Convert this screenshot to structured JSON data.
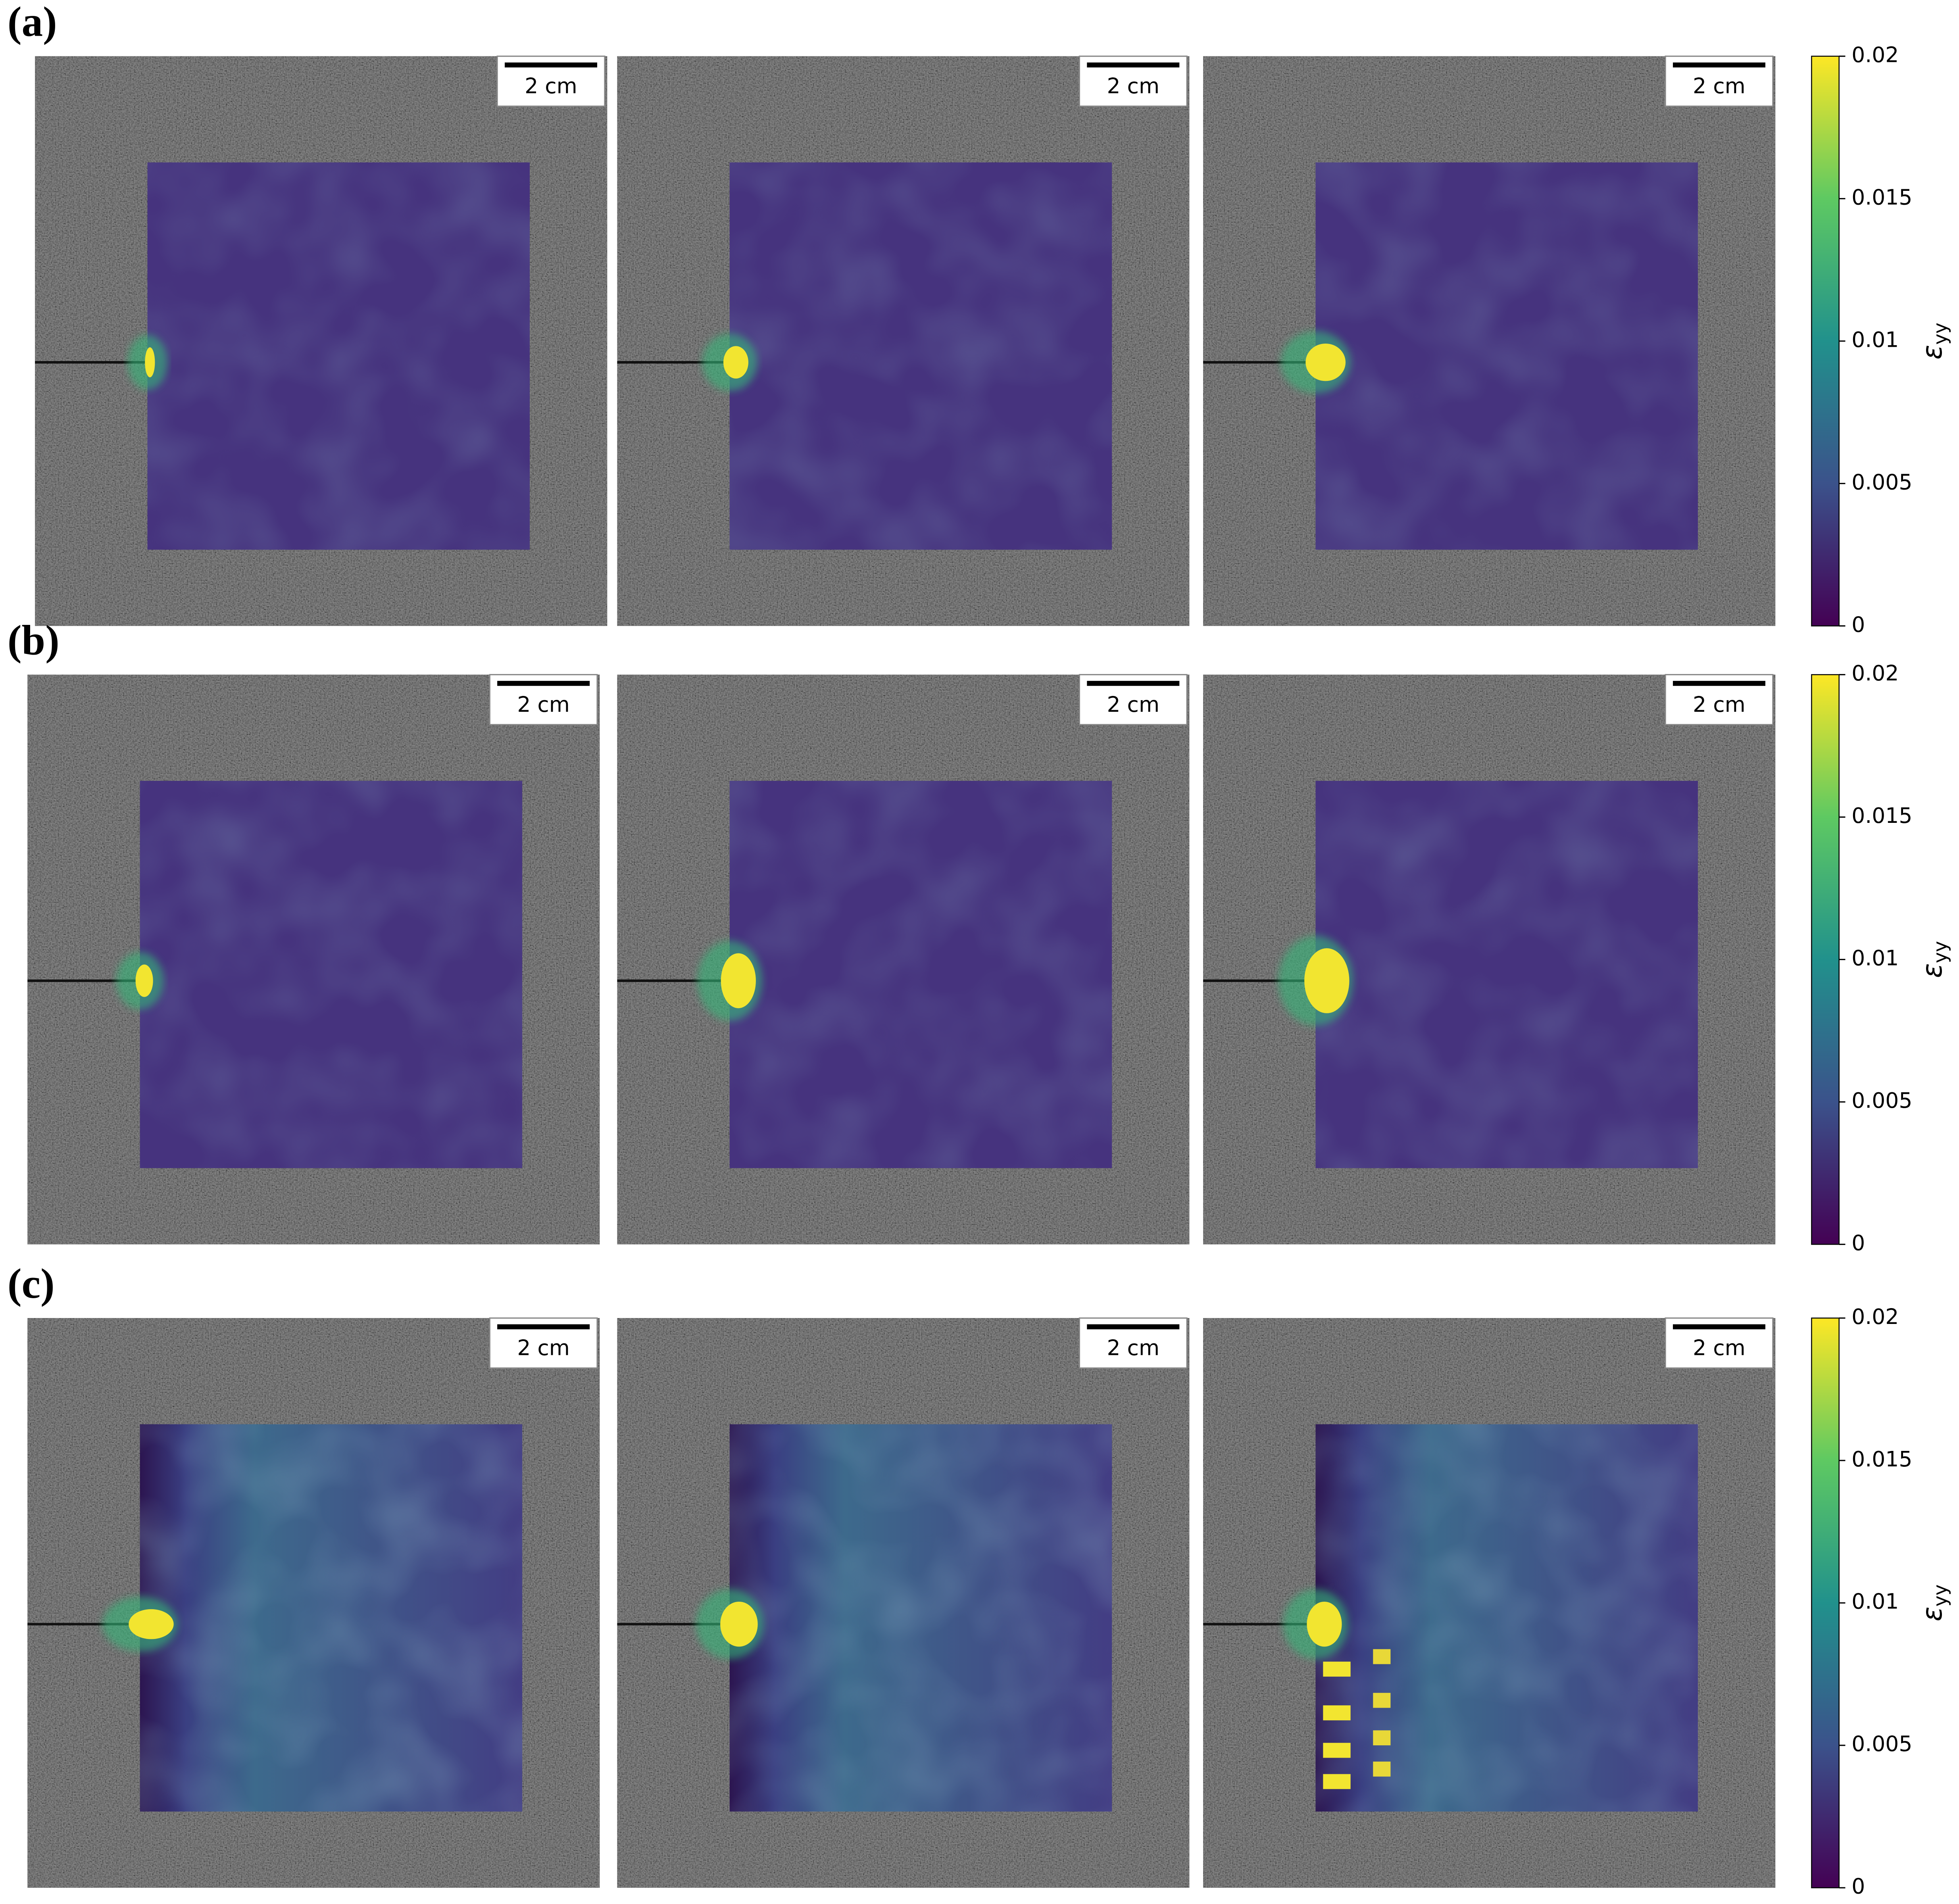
{
  "rows": [
    {
      "label": "(a)",
      "panels": [
        {
          "scale_bar": "2 cm"
        },
        {
          "scale_bar": "2 cm"
        },
        {
          "scale_bar": "2 cm"
        }
      ],
      "colorbar": {
        "lim": [
          0,
          0.02
        ],
        "ticks": [
          0,
          0.005,
          0.01,
          0.015,
          0.02
        ],
        "label": {
          "symbol": "ε",
          "subscript": "yy"
        }
      }
    },
    {
      "label": "(b)",
      "panels": [
        {
          "scale_bar": "2 cm"
        },
        {
          "scale_bar": "2 cm"
        },
        {
          "scale_bar": "2 cm"
        }
      ],
      "colorbar": {
        "lim": [
          0,
          0.02
        ],
        "ticks": [
          0,
          0.005,
          0.01,
          0.015,
          0.02
        ],
        "label": {
          "symbol": "ε",
          "subscript": "yy"
        }
      }
    },
    {
      "label": "(c)",
      "panels": [
        {
          "scale_bar": "2 cm"
        },
        {
          "scale_bar": "2 cm"
        },
        {
          "scale_bar": "2 cm"
        }
      ],
      "colorbar": {
        "lim": [
          0,
          0.02
        ],
        "ticks": [
          0,
          0.005,
          0.01,
          0.015,
          0.02
        ],
        "label": {
          "symbol": "ε",
          "subscript": "yy"
        }
      }
    }
  ]
}
